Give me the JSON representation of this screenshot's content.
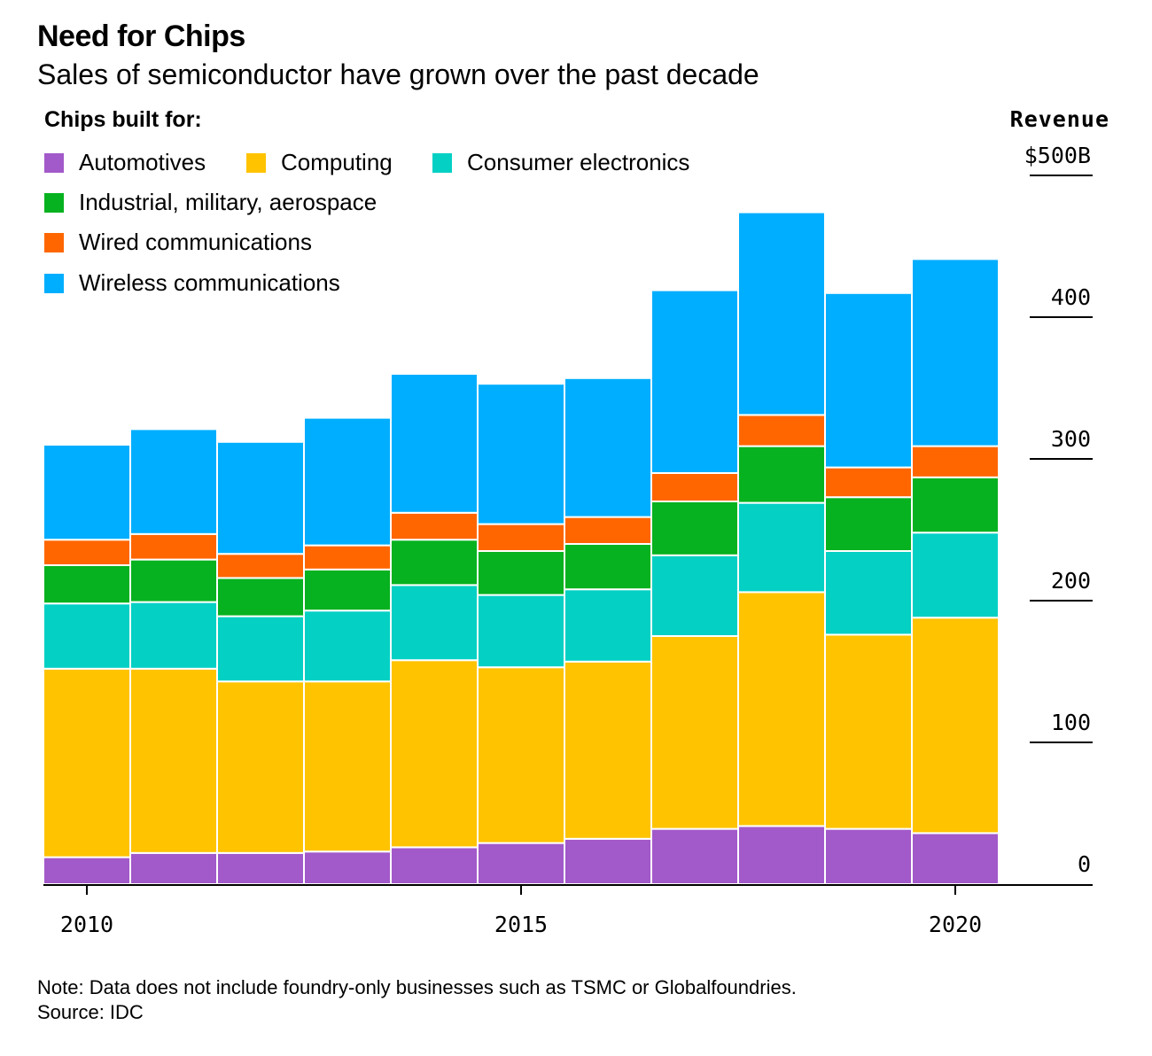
{
  "header": {
    "title": "Need for Chips",
    "subtitle": "Sales of semiconductor have grown over the past decade"
  },
  "legend": {
    "heading": "Chips built for:",
    "items": [
      {
        "label": "Automotives",
        "color": "#a259c9"
      },
      {
        "label": "Computing",
        "color": "#ffc300"
      },
      {
        "label": "Consumer electronics",
        "color": "#04d0c4"
      },
      {
        "label": "Industrial, military, aerospace",
        "color": "#06b21f"
      },
      {
        "label": "Wired communications",
        "color": "#ff6600"
      },
      {
        "label": "Wireless communications",
        "color": "#00aeff"
      }
    ]
  },
  "y_axis": {
    "title": "Revenue",
    "tick_labels": [
      "0",
      "100",
      "200",
      "300",
      "400",
      "$500B"
    ]
  },
  "footer": {
    "note": "Note: Data does not include foundry-only businesses such as TSMC or Globalfoundries.",
    "source": "Source: IDC"
  },
  "chart_data": {
    "type": "bar",
    "stacked": true,
    "ylabel": "Revenue",
    "ylim": [
      0,
      500
    ],
    "yticks": [
      0,
      100,
      200,
      300,
      400,
      500
    ],
    "xticks": [
      2010,
      2015,
      2020
    ],
    "categories": [
      "2010",
      "2011",
      "2012",
      "2013",
      "2014",
      "2015",
      "2016",
      "2017",
      "2018",
      "2019",
      "2020"
    ],
    "series": [
      {
        "name": "Automotives",
        "color": "#a259c9",
        "values": [
          19,
          22,
          22,
          23,
          26,
          29,
          32,
          39,
          41,
          39,
          36
        ]
      },
      {
        "name": "Computing",
        "color": "#ffc300",
        "values": [
          133,
          130,
          121,
          120,
          132,
          124,
          125,
          136,
          165,
          137,
          152
        ]
      },
      {
        "name": "Consumer electronics",
        "color": "#04d0c4",
        "values": [
          46,
          47,
          46,
          50,
          53,
          51,
          51,
          57,
          63,
          59,
          60
        ]
      },
      {
        "name": "Industrial, military, aerospace",
        "color": "#06b21f",
        "values": [
          27,
          30,
          27,
          29,
          32,
          31,
          32,
          38,
          40,
          38,
          39
        ]
      },
      {
        "name": "Wired communications",
        "color": "#ff6600",
        "values": [
          18,
          18,
          17,
          17,
          19,
          19,
          19,
          20,
          22,
          21,
          22
        ]
      },
      {
        "name": "Wireless communications",
        "color": "#00aeff",
        "values": [
          67,
          74,
          79,
          90,
          98,
          99,
          98,
          129,
          143,
          123,
          132
        ]
      }
    ],
    "grid": false
  }
}
